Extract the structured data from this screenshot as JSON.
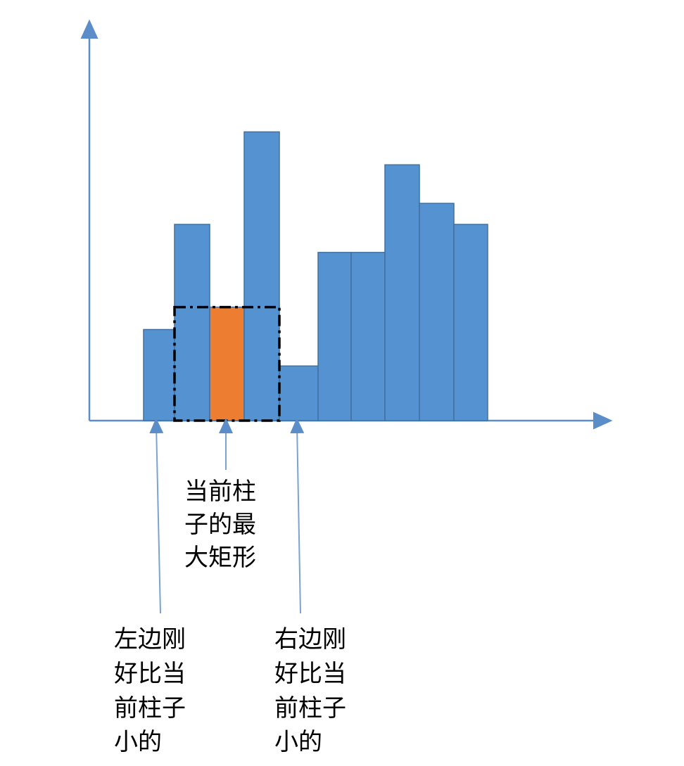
{
  "colors": {
    "bar": "#5592d2",
    "bar_stroke": "#41709e",
    "current_bar": "#ed7d31",
    "axis": "#5b8ec9",
    "pointer": "#7aa3d4",
    "box": "#000000"
  },
  "chart_data": {
    "type": "bar",
    "values": [
      130,
      280,
      162,
      412,
      78,
      240,
      240,
      365,
      310,
      280
    ],
    "current_index": 2,
    "left_smaller_index": 0,
    "right_smaller_index": 4,
    "ylim": [
      0,
      560
    ]
  },
  "labels": {
    "current": [
      "当前柱",
      "子的最",
      "大矩形"
    ],
    "left": [
      "左边刚",
      "好比当",
      "前柱子",
      "小的"
    ],
    "right": [
      "右边刚",
      "好比当",
      "前柱子",
      "小的"
    ]
  }
}
